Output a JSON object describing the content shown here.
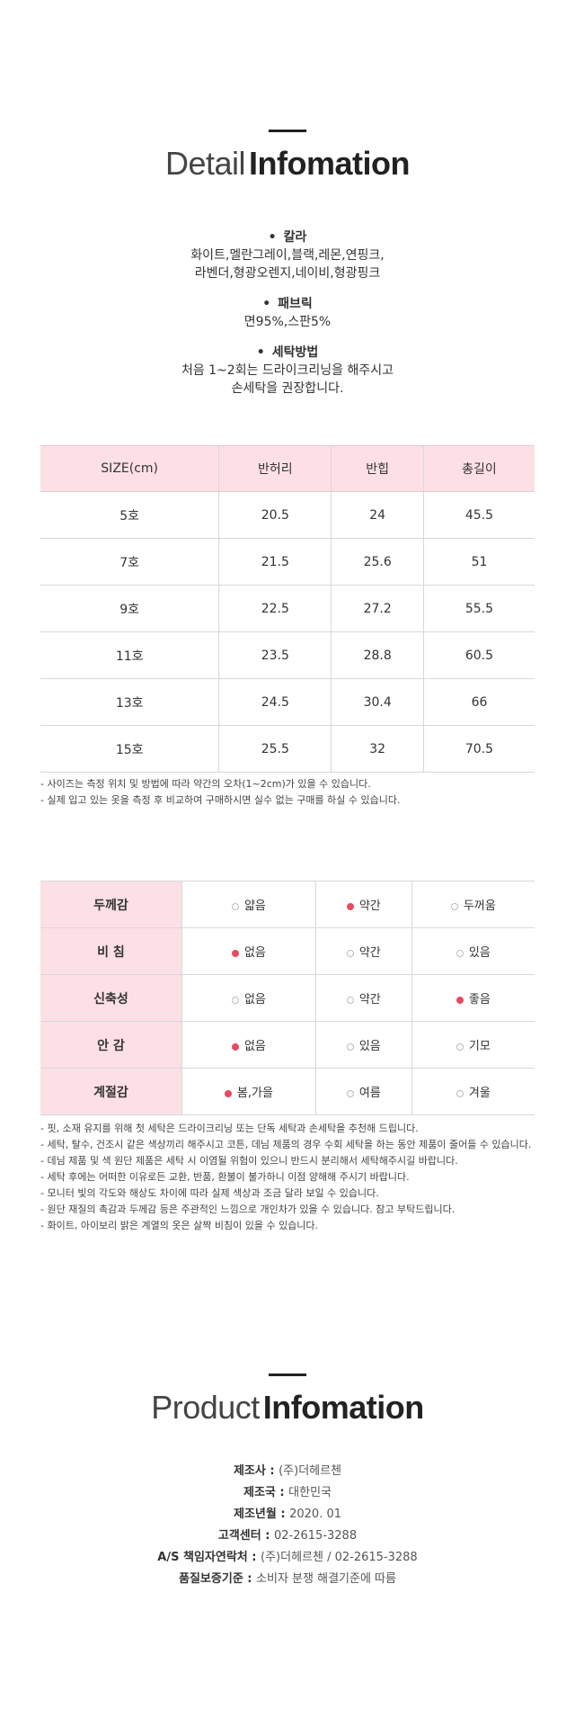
{
  "detail_header": {
    "light": "Detail",
    "bold": "Infomation"
  },
  "product_attrs": [
    {
      "label": "칼라",
      "lines": [
        "화이트,멜란그레이,블랙,레몬,연핑크,",
        "라벤더,형광오렌지,네이비,형광핑크"
      ]
    },
    {
      "label": "패브릭",
      "lines": [
        "면95%,스판5%"
      ]
    },
    {
      "label": "세탁방법",
      "lines": [
        "처음 1~2회는 드라이크리닝을 해주시고",
        "손세탁을 권장합니다."
      ]
    }
  ],
  "size_table": {
    "headers": [
      "SIZE(cm)",
      "반허리",
      "반힙",
      "총길이"
    ],
    "rows": [
      [
        "5호",
        "20.5",
        "24",
        "45.5"
      ],
      [
        "7호",
        "21.5",
        "25.6",
        "51"
      ],
      [
        "9호",
        "22.5",
        "27.2",
        "55.5"
      ],
      [
        "11호",
        "23.5",
        "28.8",
        "60.5"
      ],
      [
        "13호",
        "24.5",
        "30.4",
        "66"
      ],
      [
        "15호",
        "25.5",
        "32",
        "70.5"
      ]
    ]
  },
  "size_notes": [
    "- 사이즈는 측정 위치 및 방법에 따라 약간의 오차(1~2cm)가 있을 수 있습니다.",
    "- 실제 입고 있는 옷을 측정 후 비교하여 구매하시면 실수 없는 구매를 하실 수 있습니다."
  ],
  "fit_table": [
    {
      "label": "두께감",
      "options": [
        "얇음",
        "약간",
        "두꺼움"
      ],
      "selected": 1
    },
    {
      "label": "비 침",
      "options": [
        "없음",
        "약간",
        "있음"
      ],
      "selected": 0
    },
    {
      "label": "신축성",
      "options": [
        "없음",
        "약간",
        "좋음"
      ],
      "selected": 2
    },
    {
      "label": "안 감",
      "options": [
        "없음",
        "있음",
        "기모"
      ],
      "selected": 0
    },
    {
      "label": "계절감",
      "options": [
        "봄,가을",
        "여름",
        "겨울"
      ],
      "selected": 0
    }
  ],
  "care_notes": [
    "- 핏, 소재 유지를 위해 첫 세탁은 드라이크리닝 또는 단독 세탁과 손세탁을 추천해 드립니다.",
    "- 세탁, 탈수, 건조시 같은 색상끼리 해주시고 코튼, 데님 제품의 경우 수회 세탁을 하는 동안 제품이 줄어들 수 있습니다.",
    "- 데님 제품 및 색 원단 제품은 세탁 시 이염될 위험이 있으니 반드시 분리해서 세탁해주시길 바랍니다.",
    "- 세탁 후에는 어떠한 이유로든 교환, 반품, 환불이 불가하니 이점 양해해 주시기 바랍니다.",
    "- 모니터 빛의 각도와 해상도 차이에 따라 실제 색상과 조금 달라 보일 수 있습니다.",
    "- 원단 재질의 촉감과 두께감 등은 주관적인 느낌으로 개인차가 있을 수 있습니다. 참고 부탁드립니다.",
    "- 화이트, 아이보리 밝은 계열의 옷은 살짝 비침이 있을 수 있습니다."
  ],
  "product_header": {
    "light": "Product",
    "bold": "Infomation"
  },
  "product_info": [
    {
      "key": "제조사",
      "value": "(주)더헤르첸"
    },
    {
      "key": "제조국",
      "value": "대한민국"
    },
    {
      "key": "제조년월",
      "value": "2020. 01"
    },
    {
      "key": "고객센터",
      "value": "02-2615-3288"
    },
    {
      "key": "A/S 책임자연락처",
      "value": "(주)더헤르첸 / 02-2615-3288"
    },
    {
      "key": "품질보증기준",
      "value": "소비자 분쟁 해결기준에 따름"
    }
  ]
}
